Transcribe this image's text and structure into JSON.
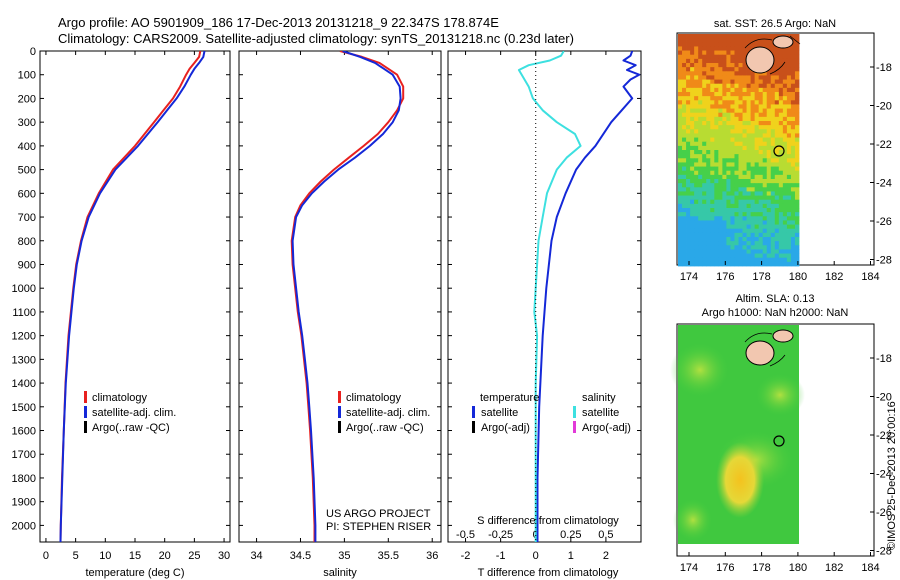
{
  "header": {
    "title_line1": "Argo profile: AO 5901909_186 17-Dec-2013 20131218_9 22.347S 178.874E",
    "title_line2": "Climatology: CARS2009. Satellite-adjusted climatology: synTS_20131218.nc (0.23d later)"
  },
  "colors": {
    "climatology": "#e8211f",
    "satellite": "#1428d8",
    "argo": "#000000",
    "salinity_satellite": "#3de0e0",
    "salinity_argo": "#e23ad8"
  },
  "chart_data": [
    {
      "type": "line",
      "id": "temperature",
      "xlabel": "temperature (deg C)",
      "ylabel": "",
      "xlim": [
        -1,
        31
      ],
      "ylim": [
        2070,
        0
      ],
      "xticks": [
        0,
        5,
        10,
        15,
        20,
        25,
        30
      ],
      "yticks": [
        0,
        100,
        200,
        300,
        400,
        500,
        600,
        700,
        800,
        900,
        1000,
        1100,
        1200,
        1300,
        1400,
        1500,
        1600,
        1700,
        1800,
        1900,
        2000
      ],
      "series": [
        {
          "name": "climatology",
          "color_key": "climatology",
          "depth": [
            0,
            25,
            50,
            75,
            100,
            150,
            200,
            250,
            300,
            400,
            500,
            600,
            700,
            800,
            900,
            1000,
            1200,
            1400,
            1600,
            1800,
            2000,
            2070
          ],
          "values": [
            26.0,
            25.8,
            25.0,
            24.2,
            23.6,
            22.6,
            21.4,
            19.8,
            18.2,
            15.0,
            11.3,
            8.9,
            7.0,
            5.9,
            5.1,
            4.6,
            3.8,
            3.3,
            3.0,
            2.7,
            2.5,
            2.45
          ]
        },
        {
          "name": "satellite-adj. clim.",
          "color_key": "satellite",
          "depth": [
            0,
            25,
            50,
            75,
            100,
            150,
            200,
            250,
            300,
            400,
            500,
            600,
            700,
            800,
            900,
            1000,
            1200,
            1400,
            1600,
            1800,
            2000,
            2070
          ],
          "values": [
            26.7,
            26.5,
            25.8,
            25.0,
            24.4,
            23.3,
            22.0,
            20.4,
            18.8,
            15.5,
            11.7,
            9.1,
            7.2,
            6.0,
            5.2,
            4.7,
            3.9,
            3.35,
            3.0,
            2.75,
            2.5,
            2.45
          ]
        }
      ],
      "legend": [
        "climatology",
        "satellite-adj. clim.",
        "Argo(..raw -QC)"
      ]
    },
    {
      "type": "line",
      "id": "salinity",
      "xlabel": "salinity",
      "ylabel": "",
      "xlim": [
        33.8,
        36.1
      ],
      "ylim": [
        2070,
        0
      ],
      "xticks": [
        34,
        34.5,
        35,
        35.5,
        36
      ],
      "xtick_labels": [
        "34",
        "34.5",
        "35",
        "35.5",
        "36"
      ],
      "series": [
        {
          "name": "climatology",
          "color_key": "climatology",
          "depth": [
            0,
            25,
            50,
            100,
            150,
            200,
            250,
            300,
            350,
            400,
            450,
            500,
            550,
            600,
            650,
            700,
            800,
            900,
            1000,
            1100,
            1200,
            1300,
            1400,
            1500,
            1600,
            1800,
            2000,
            2070
          ],
          "values": [
            34.95,
            35.2,
            35.4,
            35.6,
            35.67,
            35.67,
            35.6,
            35.5,
            35.38,
            35.22,
            35.05,
            34.88,
            34.73,
            34.6,
            34.5,
            34.44,
            34.4,
            34.41,
            34.44,
            34.47,
            34.51,
            34.54,
            34.57,
            34.59,
            34.61,
            34.64,
            34.66,
            34.66
          ]
        },
        {
          "name": "satellite-adj. clim.",
          "color_key": "satellite",
          "depth": [
            0,
            25,
            50,
            100,
            150,
            200,
            250,
            300,
            350,
            400,
            450,
            500,
            550,
            600,
            650,
            700,
            800,
            900,
            1000,
            1100,
            1200,
            1300,
            1400,
            1500,
            1600,
            1800,
            2000,
            2070
          ],
          "values": [
            34.98,
            35.18,
            35.35,
            35.55,
            35.63,
            35.64,
            35.62,
            35.55,
            35.44,
            35.29,
            35.12,
            34.93,
            34.77,
            34.63,
            34.52,
            34.45,
            34.41,
            34.42,
            34.45,
            34.48,
            34.52,
            34.55,
            34.58,
            34.6,
            34.62,
            34.65,
            34.67,
            34.67
          ]
        }
      ],
      "legend": [
        "climatology",
        "satellite-adj. clim.",
        "Argo(..raw -QC)"
      ],
      "annotation": [
        "US ARGO PROJECT",
        "PI: STEPHEN RISER"
      ]
    },
    {
      "type": "line",
      "id": "difference",
      "xlabel": "T difference from climatology",
      "x2label": "S difference from climatology",
      "ylabel": "",
      "xlim": [
        -2.5,
        3
      ],
      "ylim": [
        2070,
        0
      ],
      "xticks": [
        -2,
        -1,
        0,
        1,
        2
      ],
      "xtick_labels": [
        "-2",
        "-1",
        "0",
        "1",
        "2"
      ],
      "x2ticks": [
        -0.5,
        -0.25,
        0,
        0.25,
        0.5
      ],
      "x2tick_labels": [
        "-0.5",
        "-0.25",
        "0",
        "0.25",
        "0.5"
      ],
      "series": [
        {
          "name": "temperature satellite",
          "color_key": "satellite",
          "depth": [
            0,
            20,
            40,
            60,
            80,
            100,
            120,
            150,
            200,
            250,
            300,
            400,
            450,
            500,
            600,
            700,
            800,
            1000,
            1200,
            1500,
            1800,
            2000,
            2070
          ],
          "values": [
            2.75,
            2.7,
            2.5,
            2.85,
            2.6,
            2.95,
            2.7,
            2.5,
            2.75,
            2.45,
            2.15,
            1.7,
            1.4,
            1.15,
            0.85,
            0.6,
            0.45,
            0.3,
            0.2,
            0.1,
            0.05,
            0.05,
            0.05
          ]
        },
        {
          "name": "salinity satellite",
          "color_key": "salinity_satellite",
          "depth": [
            0,
            20,
            40,
            60,
            80,
            100,
            150,
            200,
            250,
            300,
            350,
            400,
            450,
            500,
            600,
            700,
            800,
            1000,
            1100,
            1200,
            1400,
            1600,
            1800,
            2000,
            2070
          ],
          "values": [
            0.2,
            0.18,
            0.1,
            -0.05,
            -0.12,
            -0.1,
            -0.05,
            -0.02,
            0.05,
            0.15,
            0.28,
            0.32,
            0.22,
            0.15,
            0.08,
            0.05,
            0.02,
            0.0,
            -0.01,
            0.01,
            0.0,
            0.0,
            0.0,
            0.0,
            0.0
          ]
        }
      ],
      "legend": {
        "temperature_title": "temperature",
        "salinity_title": "salinity",
        "temp_items": [
          "satellite",
          "Argo(-adj)"
        ],
        "sal_items": [
          "satellite",
          "Argo(-adj)"
        ]
      }
    }
  ],
  "maps": {
    "sst": {
      "title": "sat. SST: 26.5 Argo: NaN",
      "xticks": [
        "174",
        "176",
        "178",
        "180",
        "182",
        "184"
      ],
      "yticks": [
        "-18",
        "-20",
        "-22",
        "-24",
        "-26",
        "-28"
      ]
    },
    "sla": {
      "title_line1": "Altim. SLA: 0.13",
      "title_line2": "Argo h1000: NaN h2000: NaN",
      "xticks": [
        "174",
        "176",
        "178",
        "180",
        "182",
        "184"
      ],
      "yticks": [
        "-18",
        "-20",
        "-22",
        "-24",
        "-26",
        "-28"
      ]
    }
  },
  "footer": {
    "stamp": "©IMOS 25-Dec-2013 20:00:16"
  }
}
